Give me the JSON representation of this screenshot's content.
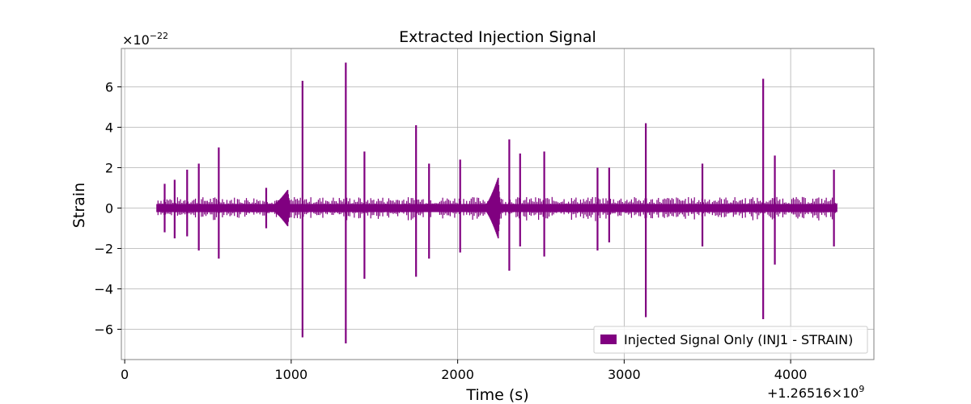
{
  "chart_data": {
    "type": "line",
    "title": "Extracted Injection Signal",
    "xlabel": "Time (s)",
    "ylabel": "Strain",
    "x_offset_label": "+1.26516×10",
    "x_offset_exponent": "9",
    "y_scale_label": "×10",
    "y_scale_exponent": "−22",
    "xlim": [
      -20,
      4500
    ],
    "ylim": [
      -7.5,
      7.9
    ],
    "x_ticks": [
      0,
      1000,
      2000,
      3000,
      4000
    ],
    "x_tick_labels": [
      "0",
      "1000",
      "2000",
      "3000",
      "4000"
    ],
    "y_ticks": [
      -6,
      -4,
      -2,
      0,
      2,
      4,
      6
    ],
    "y_tick_labels": [
      "−6",
      "−4",
      "−2",
      "0",
      "2",
      "4",
      "6"
    ],
    "grid": true,
    "legend_position": "lower-right",
    "series": [
      {
        "name": "Injected Signal Only (INJ1 - STRAIN)",
        "color": "#800080",
        "baseline_range": [
          190,
          4280
        ],
        "spikes": [
          {
            "x": 240,
            "y_max": 1.2,
            "y_min": -1.2
          },
          {
            "x": 300,
            "y_max": 1.4,
            "y_min": -1.5
          },
          {
            "x": 375,
            "y_max": 1.9,
            "y_min": -1.4
          },
          {
            "x": 445,
            "y_max": 2.2,
            "y_min": -2.1
          },
          {
            "x": 565,
            "y_max": 3.0,
            "y_min": -2.5
          },
          {
            "x": 850,
            "y_max": 1.0,
            "y_min": -1.0
          },
          {
            "x": 1068,
            "y_max": 6.3,
            "y_min": -6.4
          },
          {
            "x": 1328,
            "y_max": 7.2,
            "y_min": -6.7
          },
          {
            "x": 1440,
            "y_max": 2.8,
            "y_min": -3.5
          },
          {
            "x": 1750,
            "y_max": 4.1,
            "y_min": -3.4
          },
          {
            "x": 1828,
            "y_max": 2.2,
            "y_min": -2.5
          },
          {
            "x": 2015,
            "y_max": 2.4,
            "y_min": -2.2
          },
          {
            "x": 2310,
            "y_max": 3.4,
            "y_min": -3.1
          },
          {
            "x": 2375,
            "y_max": 2.7,
            "y_min": -1.9
          },
          {
            "x": 2520,
            "y_max": 2.8,
            "y_min": -2.4
          },
          {
            "x": 2840,
            "y_max": 2.0,
            "y_min": -2.1
          },
          {
            "x": 2910,
            "y_max": 2.0,
            "y_min": -1.7
          },
          {
            "x": 3130,
            "y_max": 4.2,
            "y_min": -5.4
          },
          {
            "x": 3470,
            "y_max": 2.2,
            "y_min": -1.9
          },
          {
            "x": 3835,
            "y_max": 6.4,
            "y_min": -5.5
          },
          {
            "x": 3905,
            "y_max": 2.6,
            "y_min": -2.8
          },
          {
            "x": 4260,
            "y_max": 1.9,
            "y_min": -1.9
          }
        ],
        "bursts": [
          {
            "x_start": 860,
            "x_end": 1000,
            "peak": 0.9
          },
          {
            "x_start": 2150,
            "x_end": 2260,
            "peak": 1.5
          }
        ]
      }
    ]
  }
}
